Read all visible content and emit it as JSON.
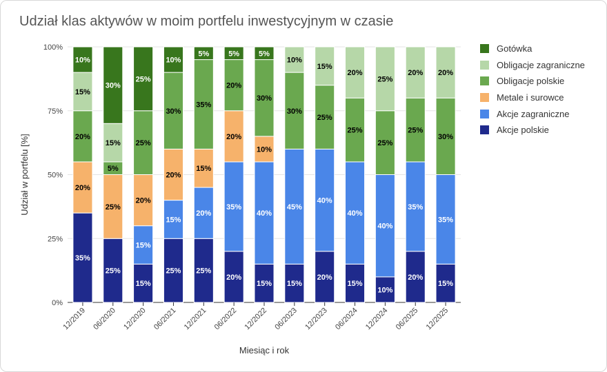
{
  "chart_data": {
    "type": "bar",
    "stacked": true,
    "title": "Udział klas aktywów w moim portfelu inwestycyjnym w czasie",
    "xlabel": "Miesiąc i rok",
    "ylabel": "Udział w portfelu [%]",
    "ylim": [
      0,
      100
    ],
    "yticks": [
      "0%",
      "25%",
      "50%",
      "75%",
      "100%"
    ],
    "grid": true,
    "legend_position": "right",
    "value_suffix": "%",
    "categories": [
      "12/2019",
      "06/2020",
      "12/2020",
      "06/2021",
      "12/2021",
      "06/2022",
      "12/2022",
      "06/2023",
      "12/2023",
      "06/2024",
      "12/2024",
      "06/2025",
      "12/2025"
    ],
    "series": [
      {
        "name": "Akcje polskie",
        "color": "#1f2a8c",
        "values": [
          35,
          25,
          15,
          25,
          25,
          20,
          15,
          15,
          20,
          15,
          10,
          20,
          15
        ]
      },
      {
        "name": "Akcje zagraniczne",
        "color": "#4a86e8",
        "values": [
          0,
          0,
          15,
          15,
          20,
          35,
          40,
          45,
          40,
          40,
          40,
          35,
          35
        ]
      },
      {
        "name": "Metale i surowce",
        "color": "#f6b26b",
        "values": [
          20,
          25,
          20,
          20,
          15,
          20,
          10,
          0,
          0,
          0,
          0,
          0,
          0
        ]
      },
      {
        "name": "Obligacje polskie",
        "color": "#6aa84f",
        "values": [
          20,
          5,
          25,
          30,
          35,
          20,
          30,
          30,
          25,
          25,
          25,
          25,
          30
        ]
      },
      {
        "name": "Obligacje zagraniczne",
        "color": "#b6d7a8",
        "values": [
          15,
          15,
          0,
          0,
          0,
          0,
          0,
          10,
          15,
          20,
          25,
          20,
          20
        ]
      },
      {
        "name": "Gotówka",
        "color": "#38761d",
        "values": [
          10,
          30,
          25,
          10,
          5,
          5,
          5,
          0,
          0,
          0,
          0,
          0,
          0
        ]
      }
    ],
    "label_colors": {
      "Akcje polskie": "#ffffff",
      "Akcje zagraniczne": "#ffffff",
      "Metale i surowce": "#000000",
      "Obligacje polskie": "#000000",
      "Obligacje zagraniczne": "#000000",
      "Gotówka": "#ffffff"
    },
    "legend_order": [
      "Gotówka",
      "Obligacje zagraniczne",
      "Obligacje polskie",
      "Metale i surowce",
      "Akcje zagraniczne",
      "Akcje polskie"
    ]
  }
}
